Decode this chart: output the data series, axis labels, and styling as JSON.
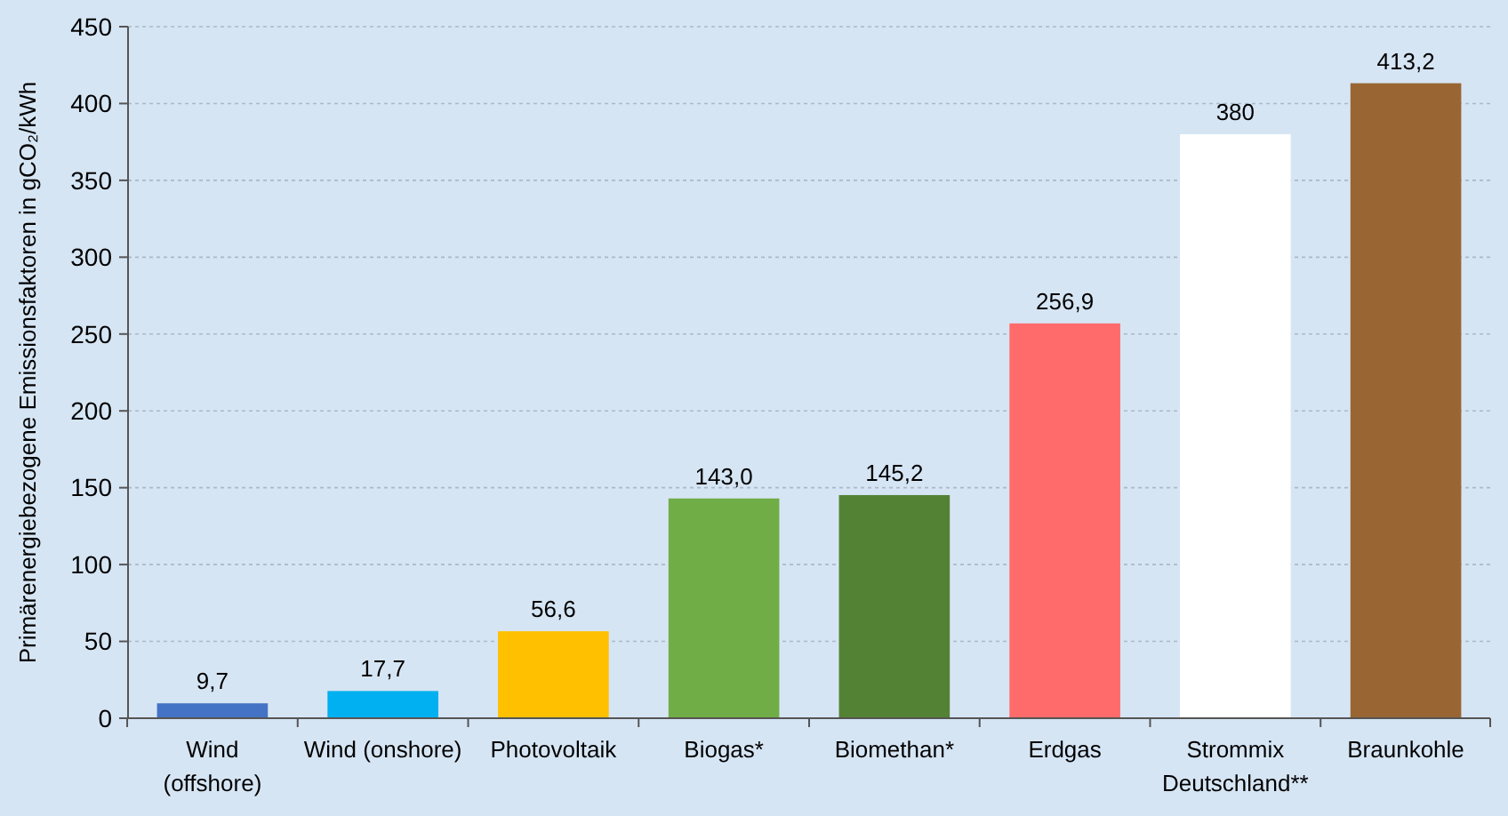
{
  "chart_data": {
    "type": "bar",
    "ylabel": "Primärenergiebezogene Emissionsfaktoren in gCO₂/kWh",
    "categories": [
      "Wind\n(offshore)",
      "Wind (onshore)",
      "Photovoltaik",
      "Biogas*",
      "Biomethan*",
      "Erdgas",
      "Strommix\nDeutschland**",
      "Braunkohle"
    ],
    "values": [
      9.7,
      17.7,
      56.6,
      143.0,
      145.2,
      256.9,
      380,
      413.2
    ],
    "colors": [
      "#4472c4",
      "#00b0f0",
      "#ffc000",
      "#70ad47",
      "#548235",
      "#ff6b6b",
      "#ffffff",
      "#996633"
    ],
    "value_labels": [
      "9,7",
      "17,7",
      "56,6",
      "143,0",
      "145,2",
      "256,9",
      "380",
      "413,2"
    ],
    "ylim": [
      0,
      450
    ],
    "yticks": [
      0,
      50,
      100,
      150,
      200,
      250,
      300,
      350,
      400,
      450
    ],
    "grid": "y"
  }
}
